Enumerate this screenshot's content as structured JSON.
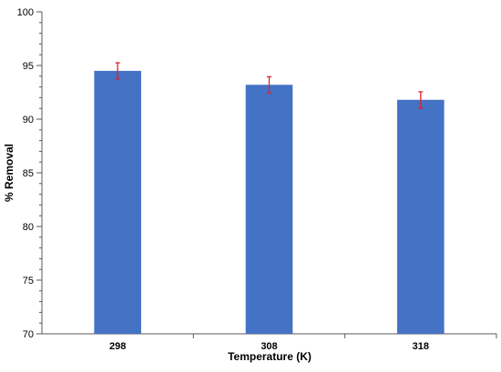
{
  "chart_data": {
    "type": "bar",
    "title": "",
    "xlabel": "Temperature (K)",
    "ylabel": "% Removal",
    "categories": [
      "298",
      "308",
      "318"
    ],
    "values": [
      94.5,
      93.2,
      91.8
    ],
    "error_bars": [
      0.75,
      0.75,
      0.75
    ],
    "ylim": [
      70,
      100
    ],
    "y_ticks": [
      70,
      75,
      80,
      85,
      90,
      95,
      100
    ],
    "y_minor_step": 1,
    "grid": false,
    "legend": "none",
    "colors": {
      "bar": "#4472C4",
      "error_bar": "#E0202F",
      "axis": "#595959"
    }
  }
}
